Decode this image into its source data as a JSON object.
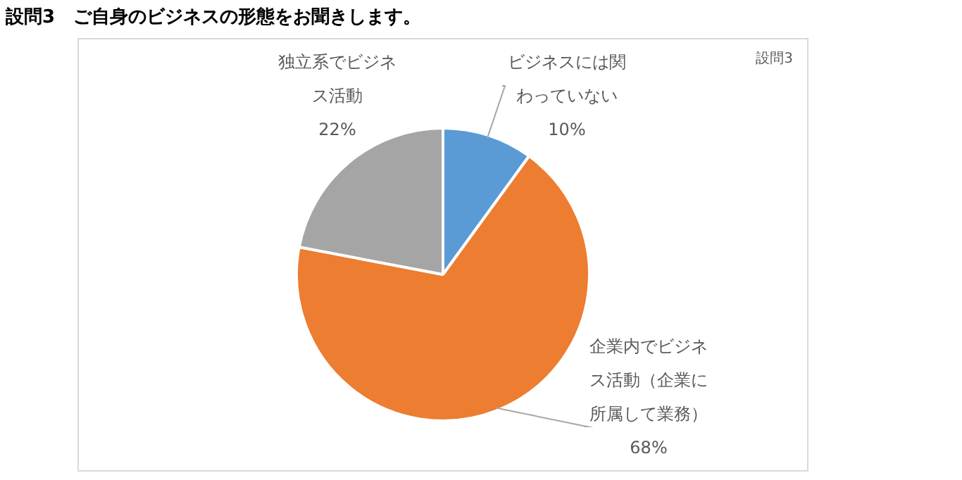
{
  "chart_data": {
    "type": "pie",
    "title": "設問3　ご自身のビジネスの形態をお聞きします。",
    "annotations": [
      "設問3"
    ],
    "categories": [
      "ビジネスには関わっていない",
      "企業内でビジネス活動（企業に所属して業務）",
      "独立系でビジネス活動"
    ],
    "values": [
      10,
      68,
      22
    ],
    "colors": [
      "#5b9bd5",
      "#ed7d31",
      "#a5a5a5"
    ],
    "value_labels": [
      "10%",
      "68%",
      "22%"
    ],
    "legend": false
  }
}
